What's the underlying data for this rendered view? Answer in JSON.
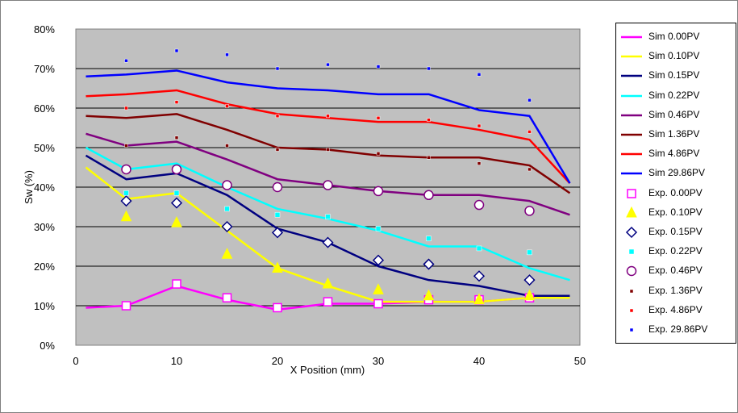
{
  "chart_data": {
    "type": "line",
    "title": "",
    "xlabel": "X Position (mm)",
    "ylabel": "Sw (%)",
    "xlim": [
      0,
      50
    ],
    "ylim": [
      0,
      80
    ],
    "x_ticks": [
      "0",
      "10",
      "20",
      "30",
      "40",
      "50"
    ],
    "y_ticks": [
      "0%",
      "10%",
      "20%",
      "30%",
      "40%",
      "50%",
      "60%",
      "70%",
      "80%"
    ],
    "grid": "horizontal",
    "plot_background": "#C0C0C0",
    "legend_position": "right",
    "series": [
      {
        "name": "Sim  0.00PV",
        "kind": "line",
        "color": "#FF00FF",
        "x": [
          1,
          5,
          10,
          15,
          20,
          25,
          30,
          35,
          40,
          45,
          49
        ],
        "y": [
          9.5,
          10,
          15,
          11.5,
          9,
          10.5,
          10.5,
          11,
          11,
          12,
          12
        ]
      },
      {
        "name": "Sim  0.10PV",
        "kind": "line",
        "color": "#FFFF00",
        "x": [
          1,
          5,
          10,
          15,
          20,
          25,
          30,
          35,
          40,
          45,
          49
        ],
        "y": [
          45,
          37,
          38.5,
          29,
          19.5,
          15,
          11,
          11,
          11,
          12,
          12
        ]
      },
      {
        "name": "Sim  0.15PV",
        "kind": "line",
        "color": "#000080",
        "x": [
          1,
          5,
          10,
          15,
          20,
          25,
          30,
          35,
          40,
          45,
          49
        ],
        "y": [
          48,
          42,
          43.5,
          38,
          29.5,
          26,
          20,
          16.5,
          15,
          12.5,
          12.5
        ]
      },
      {
        "name": "Sim  0.22PV",
        "kind": "line",
        "color": "#00FFFF",
        "x": [
          1,
          5,
          10,
          15,
          20,
          25,
          30,
          35,
          40,
          45,
          49
        ],
        "y": [
          50,
          44.5,
          46,
          40,
          34.5,
          32,
          29,
          25,
          25,
          19.5,
          16.5
        ]
      },
      {
        "name": "Sim  0.46PV",
        "kind": "line",
        "color": "#800080",
        "x": [
          1,
          5,
          10,
          15,
          20,
          25,
          30,
          35,
          40,
          45,
          49
        ],
        "y": [
          53.5,
          50.5,
          51.5,
          47,
          42,
          40.5,
          39,
          38,
          38,
          36.5,
          33
        ]
      },
      {
        "name": "Sim  1.36PV",
        "kind": "line",
        "color": "#800000",
        "x": [
          1,
          5,
          10,
          15,
          20,
          25,
          30,
          35,
          40,
          45,
          49
        ],
        "y": [
          58,
          57.5,
          58.5,
          54.5,
          50,
          49.5,
          48,
          47.5,
          47.5,
          45.5,
          38.5
        ]
      },
      {
        "name": "Sim  4.86PV",
        "kind": "line",
        "color": "#FF0000",
        "x": [
          1,
          5,
          10,
          15,
          20,
          25,
          30,
          35,
          40,
          45,
          49
        ],
        "y": [
          63,
          63.5,
          64.5,
          61,
          58.5,
          57.5,
          56.5,
          56.5,
          54.5,
          52,
          41
        ]
      },
      {
        "name": "Sim  29.86PV",
        "kind": "line",
        "color": "#0000FF",
        "x": [
          1,
          5,
          10,
          15,
          20,
          25,
          30,
          35,
          40,
          45,
          49
        ],
        "y": [
          68,
          68.5,
          69.5,
          66.5,
          65,
          64.5,
          63.5,
          63.5,
          59.5,
          58,
          41
        ]
      },
      {
        "name": "Exp.  0.00PV",
        "kind": "marker",
        "marker": "square",
        "color": "#FF00FF",
        "x": [
          5,
          10,
          15,
          20,
          25,
          30,
          35,
          40,
          45
        ],
        "y": [
          10,
          15.5,
          12,
          9.5,
          11,
          10.5,
          11.5,
          11.5,
          12
        ]
      },
      {
        "name": "Exp.  0.10PV",
        "kind": "marker",
        "marker": "triangle",
        "color": "#FFFF00",
        "x": [
          5,
          10,
          15,
          20,
          25,
          30,
          35,
          40,
          45
        ],
        "y": [
          32.5,
          31,
          23,
          19.5,
          15.5,
          14,
          12.5,
          11.5,
          12.5
        ]
      },
      {
        "name": "Exp.  0.15PV",
        "kind": "marker",
        "marker": "diamond",
        "color": "#000080",
        "x": [
          5,
          10,
          15,
          20,
          25,
          30,
          35,
          40,
          45
        ],
        "y": [
          36.5,
          36,
          30,
          28.5,
          26,
          21.5,
          20.5,
          17.5,
          16.5
        ]
      },
      {
        "name": "Exp.  0.22PV",
        "kind": "marker",
        "marker": "smallsquare",
        "color": "#00FFFF",
        "x": [
          5,
          10,
          15,
          20,
          25,
          30,
          35,
          40,
          45
        ],
        "y": [
          38.5,
          38.5,
          34.5,
          33,
          32.5,
          29.5,
          27,
          24.5,
          23.5
        ]
      },
      {
        "name": "Exp.  0.46PV",
        "kind": "marker",
        "marker": "circle",
        "color": "#800080",
        "x": [
          5,
          10,
          15,
          20,
          25,
          30,
          35,
          40,
          45
        ],
        "y": [
          44.5,
          44.5,
          40.5,
          40,
          40.5,
          39,
          38,
          35.5,
          34
        ]
      },
      {
        "name": "Exp.  1.36PV",
        "kind": "marker",
        "marker": "dot",
        "color": "#800000",
        "x": [
          5,
          10,
          15,
          20,
          25,
          30,
          35,
          40,
          45
        ],
        "y": [
          50.5,
          52.5,
          50.5,
          49.5,
          49.5,
          48.5,
          47.5,
          46,
          44.5
        ]
      },
      {
        "name": "Exp.  4.86PV",
        "kind": "marker",
        "marker": "dot",
        "color": "#FF0000",
        "x": [
          5,
          10,
          15,
          20,
          25,
          30,
          35,
          40,
          45
        ],
        "y": [
          60,
          61.5,
          60.5,
          58,
          58,
          57.5,
          57,
          55.5,
          54
        ]
      },
      {
        "name": "Exp.  29.86PV",
        "kind": "marker",
        "marker": "dot",
        "color": "#0000FF",
        "x": [
          5,
          10,
          15,
          20,
          25,
          30,
          35,
          40,
          45
        ],
        "y": [
          72,
          74.5,
          73.5,
          70,
          71,
          70.5,
          70,
          68.5,
          62
        ]
      }
    ]
  }
}
